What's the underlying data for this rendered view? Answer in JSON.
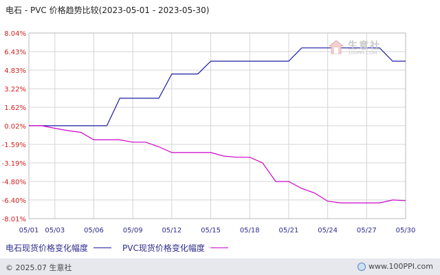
{
  "title": "电石 - PVC 价格趋势比较(2023-05-01 - 2023-05-30)",
  "watermark": {
    "name": "生意社",
    "url": "100PPI.COM"
  },
  "legend": [
    {
      "label": "电石现货价格变化幅度",
      "color": "#1a1aa6"
    },
    {
      "label": "PVC现货价格变化幅度",
      "color": "#cc00cc"
    }
  ],
  "footer": {
    "copyright": "© 2025.07 生意社",
    "site": "www.100PPI.com"
  },
  "chart_data": {
    "type": "line",
    "x": [
      "05/01",
      "05/02",
      "05/03",
      "05/04",
      "05/05",
      "05/06",
      "05/07",
      "05/08",
      "05/09",
      "05/10",
      "05/11",
      "05/12",
      "05/13",
      "05/14",
      "05/15",
      "05/16",
      "05/17",
      "05/18",
      "05/19",
      "05/20",
      "05/21",
      "05/22",
      "05/23",
      "05/24",
      "05/25",
      "05/26",
      "05/27",
      "05/28",
      "05/29",
      "05/30"
    ],
    "tick_labels": [
      "05/01",
      "05/03",
      "05/06",
      "05/09",
      "05/12",
      "05/15",
      "05/18",
      "05/21",
      "05/24",
      "05/27",
      "05/30"
    ],
    "y_tick_labels": [
      "8.04%",
      "6.43%",
      "4.83%",
      "3.22%",
      "1.62%",
      "0.02%",
      "-1.59%",
      "-3.19%",
      "-4.80%",
      "-6.40%",
      "-8.01%"
    ],
    "y_ticks": [
      8.04,
      6.43,
      4.83,
      3.22,
      1.62,
      0.02,
      -1.59,
      -3.19,
      -4.8,
      -6.4,
      -8.01
    ],
    "ylim": [
      -8.01,
      8.04
    ],
    "grid": true,
    "legend_position": "bottom-left",
    "series": [
      {
        "name": "电石现货价格变化幅度",
        "color": "#1a1aa6",
        "values": [
          0.02,
          0.02,
          0.02,
          0.02,
          0.02,
          0.02,
          0.02,
          2.4,
          2.4,
          2.4,
          2.4,
          4.5,
          4.5,
          4.5,
          5.6,
          5.6,
          5.6,
          5.6,
          5.6,
          5.6,
          5.6,
          6.75,
          6.75,
          6.75,
          6.75,
          6.75,
          6.75,
          6.75,
          5.6,
          5.6
        ]
      },
      {
        "name": "PVC现货价格变化幅度",
        "color": "#cc00cc",
        "values": [
          0.02,
          0.02,
          -0.2,
          -0.4,
          -0.55,
          -1.2,
          -1.2,
          -1.2,
          -1.4,
          -1.4,
          -1.8,
          -2.3,
          -2.3,
          -2.3,
          -2.3,
          -2.6,
          -2.7,
          -2.7,
          -3.2,
          -4.8,
          -4.8,
          -5.4,
          -5.8,
          -6.5,
          -6.65,
          -6.65,
          -6.65,
          -6.65,
          -6.4,
          -6.45
        ]
      }
    ]
  }
}
